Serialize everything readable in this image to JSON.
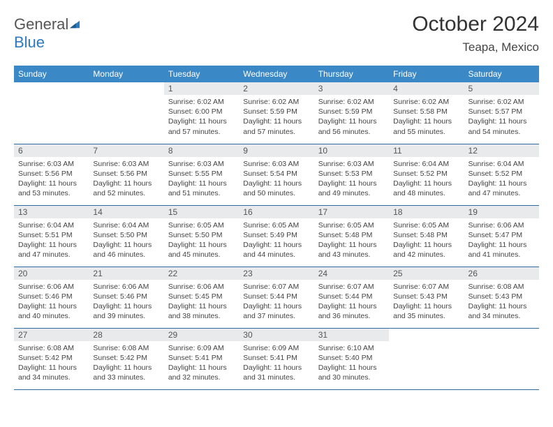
{
  "brand": {
    "name1": "General",
    "name2": "Blue"
  },
  "title": "October 2024",
  "location": "Teapa, Mexico",
  "colors": {
    "header_bg": "#3b88c6",
    "daynum_bg": "#e8eaec",
    "border": "#2b6aa3",
    "brand_blue": "#2b7bbf"
  },
  "weekdays": [
    "Sunday",
    "Monday",
    "Tuesday",
    "Wednesday",
    "Thursday",
    "Friday",
    "Saturday"
  ],
  "weeks": [
    [
      null,
      null,
      {
        "n": "1",
        "sunrise": "6:02 AM",
        "sunset": "6:00 PM",
        "dl": "11 hours and 57 minutes."
      },
      {
        "n": "2",
        "sunrise": "6:02 AM",
        "sunset": "5:59 PM",
        "dl": "11 hours and 57 minutes."
      },
      {
        "n": "3",
        "sunrise": "6:02 AM",
        "sunset": "5:59 PM",
        "dl": "11 hours and 56 minutes."
      },
      {
        "n": "4",
        "sunrise": "6:02 AM",
        "sunset": "5:58 PM",
        "dl": "11 hours and 55 minutes."
      },
      {
        "n": "5",
        "sunrise": "6:02 AM",
        "sunset": "5:57 PM",
        "dl": "11 hours and 54 minutes."
      }
    ],
    [
      {
        "n": "6",
        "sunrise": "6:03 AM",
        "sunset": "5:56 PM",
        "dl": "11 hours and 53 minutes."
      },
      {
        "n": "7",
        "sunrise": "6:03 AM",
        "sunset": "5:56 PM",
        "dl": "11 hours and 52 minutes."
      },
      {
        "n": "8",
        "sunrise": "6:03 AM",
        "sunset": "5:55 PM",
        "dl": "11 hours and 51 minutes."
      },
      {
        "n": "9",
        "sunrise": "6:03 AM",
        "sunset": "5:54 PM",
        "dl": "11 hours and 50 minutes."
      },
      {
        "n": "10",
        "sunrise": "6:03 AM",
        "sunset": "5:53 PM",
        "dl": "11 hours and 49 minutes."
      },
      {
        "n": "11",
        "sunrise": "6:04 AM",
        "sunset": "5:52 PM",
        "dl": "11 hours and 48 minutes."
      },
      {
        "n": "12",
        "sunrise": "6:04 AM",
        "sunset": "5:52 PM",
        "dl": "11 hours and 47 minutes."
      }
    ],
    [
      {
        "n": "13",
        "sunrise": "6:04 AM",
        "sunset": "5:51 PM",
        "dl": "11 hours and 47 minutes."
      },
      {
        "n": "14",
        "sunrise": "6:04 AM",
        "sunset": "5:50 PM",
        "dl": "11 hours and 46 minutes."
      },
      {
        "n": "15",
        "sunrise": "6:05 AM",
        "sunset": "5:50 PM",
        "dl": "11 hours and 45 minutes."
      },
      {
        "n": "16",
        "sunrise": "6:05 AM",
        "sunset": "5:49 PM",
        "dl": "11 hours and 44 minutes."
      },
      {
        "n": "17",
        "sunrise": "6:05 AM",
        "sunset": "5:48 PM",
        "dl": "11 hours and 43 minutes."
      },
      {
        "n": "18",
        "sunrise": "6:05 AM",
        "sunset": "5:48 PM",
        "dl": "11 hours and 42 minutes."
      },
      {
        "n": "19",
        "sunrise": "6:06 AM",
        "sunset": "5:47 PM",
        "dl": "11 hours and 41 minutes."
      }
    ],
    [
      {
        "n": "20",
        "sunrise": "6:06 AM",
        "sunset": "5:46 PM",
        "dl": "11 hours and 40 minutes."
      },
      {
        "n": "21",
        "sunrise": "6:06 AM",
        "sunset": "5:46 PM",
        "dl": "11 hours and 39 minutes."
      },
      {
        "n": "22",
        "sunrise": "6:06 AM",
        "sunset": "5:45 PM",
        "dl": "11 hours and 38 minutes."
      },
      {
        "n": "23",
        "sunrise": "6:07 AM",
        "sunset": "5:44 PM",
        "dl": "11 hours and 37 minutes."
      },
      {
        "n": "24",
        "sunrise": "6:07 AM",
        "sunset": "5:44 PM",
        "dl": "11 hours and 36 minutes."
      },
      {
        "n": "25",
        "sunrise": "6:07 AM",
        "sunset": "5:43 PM",
        "dl": "11 hours and 35 minutes."
      },
      {
        "n": "26",
        "sunrise": "6:08 AM",
        "sunset": "5:43 PM",
        "dl": "11 hours and 34 minutes."
      }
    ],
    [
      {
        "n": "27",
        "sunrise": "6:08 AM",
        "sunset": "5:42 PM",
        "dl": "11 hours and 34 minutes."
      },
      {
        "n": "28",
        "sunrise": "6:08 AM",
        "sunset": "5:42 PM",
        "dl": "11 hours and 33 minutes."
      },
      {
        "n": "29",
        "sunrise": "6:09 AM",
        "sunset": "5:41 PM",
        "dl": "11 hours and 32 minutes."
      },
      {
        "n": "30",
        "sunrise": "6:09 AM",
        "sunset": "5:41 PM",
        "dl": "11 hours and 31 minutes."
      },
      {
        "n": "31",
        "sunrise": "6:10 AM",
        "sunset": "5:40 PM",
        "dl": "11 hours and 30 minutes."
      },
      null,
      null
    ]
  ],
  "labels": {
    "sunrise": "Sunrise:",
    "sunset": "Sunset:",
    "daylight": "Daylight:"
  }
}
